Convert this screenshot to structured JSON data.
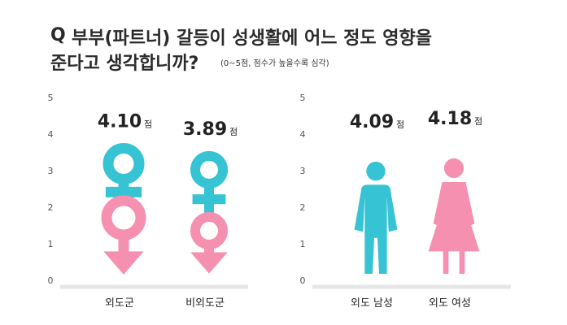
{
  "title": {
    "q_mark": "Q",
    "line1": "부부(파트너) 갈등이 성생활에 어느 정도 영향을",
    "line2": "준다고 생각합니까?",
    "note": "(0~5점, 점수가 높을수록 심각)"
  },
  "chart_data": [
    {
      "type": "bar",
      "categories": [
        "외도군",
        "비외도군"
      ],
      "values": [
        4.1,
        3.89
      ],
      "value_labels": [
        "4.10",
        "3.89"
      ],
      "unit": "점",
      "ylim": [
        0,
        5
      ],
      "yticks": [
        "0",
        "1",
        "2",
        "3",
        "4",
        "5"
      ],
      "marks": [
        "female-male-symbol-icon",
        "female-male-symbol-icon"
      ],
      "colors": {
        "top": "#36c3d3",
        "bottom": "#f590b0"
      }
    },
    {
      "type": "bar",
      "categories": [
        "외도 남성",
        "외도 여성"
      ],
      "values": [
        4.09,
        4.18
      ],
      "value_labels": [
        "4.09",
        "4.18"
      ],
      "unit": "점",
      "ylim": [
        0,
        5
      ],
      "yticks": [
        "0",
        "1",
        "2",
        "3",
        "4",
        "5"
      ],
      "marks": [
        "man-figure-icon",
        "woman-figure-icon"
      ],
      "colors": {
        "man": "#36c3d3",
        "woman": "#f590b0"
      }
    }
  ]
}
